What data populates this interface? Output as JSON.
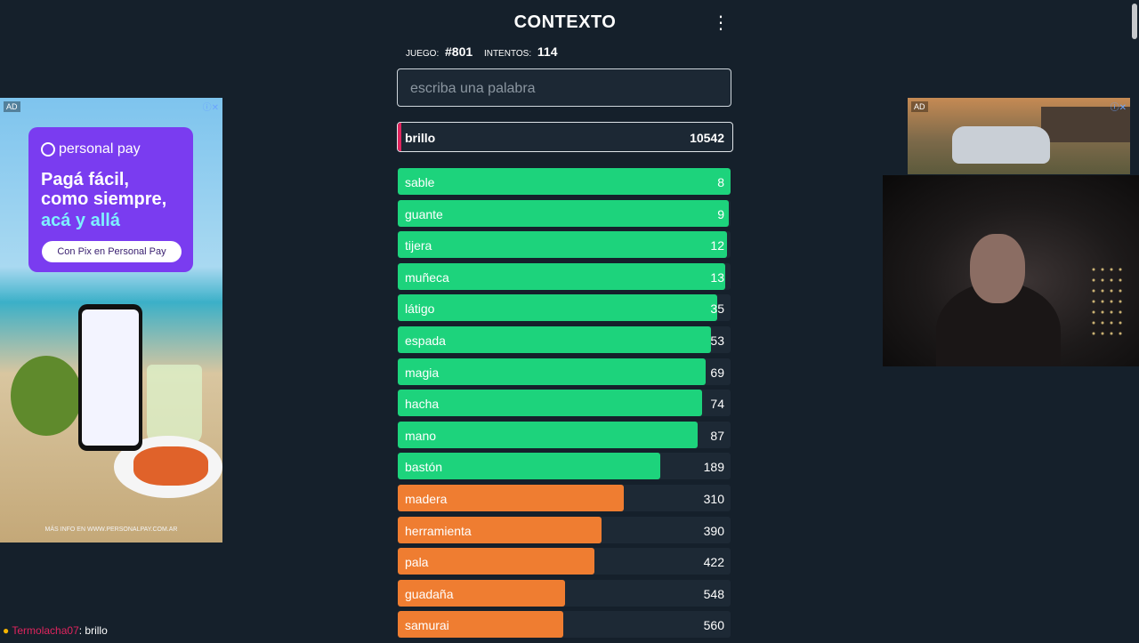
{
  "header": {
    "title": "CONTEXTO",
    "menu_icon": "⋮"
  },
  "stats": {
    "game_label": "JUEGO:",
    "game_value": "#801",
    "attempts_label": "INTENTOS:",
    "attempts_value": "114"
  },
  "search": {
    "placeholder": "escriba una palabra",
    "value": ""
  },
  "current_guess": {
    "word": "brillo",
    "rank": "10542",
    "accent_color": "#e0245e"
  },
  "guesses": [
    {
      "word": "sable",
      "rank": "8",
      "fill": 1.0,
      "color": "#1dd37c"
    },
    {
      "word": "guante",
      "rank": "9",
      "fill": 0.995,
      "color": "#1dd37c"
    },
    {
      "word": "tijera",
      "rank": "12",
      "fill": 0.99,
      "color": "#1dd37c"
    },
    {
      "word": "muñeca",
      "rank": "13",
      "fill": 0.985,
      "color": "#1dd37c"
    },
    {
      "word": "látigo",
      "rank": "35",
      "fill": 0.96,
      "color": "#1dd37c"
    },
    {
      "word": "espada",
      "rank": "53",
      "fill": 0.94,
      "color": "#1dd37c"
    },
    {
      "word": "magia",
      "rank": "69",
      "fill": 0.925,
      "color": "#1dd37c"
    },
    {
      "word": "hacha",
      "rank": "74",
      "fill": 0.915,
      "color": "#1dd37c"
    },
    {
      "word": "mano",
      "rank": "87",
      "fill": 0.9,
      "color": "#1dd37c"
    },
    {
      "word": "bastón",
      "rank": "189",
      "fill": 0.79,
      "color": "#1dd37c"
    },
    {
      "word": "madera",
      "rank": "310",
      "fill": 0.68,
      "color": "#ef7d31"
    },
    {
      "word": "herramienta",
      "rank": "390",
      "fill": 0.613,
      "color": "#ef7d31"
    },
    {
      "word": "pala",
      "rank": "422",
      "fill": 0.592,
      "color": "#ef7d31"
    },
    {
      "word": "guadaña",
      "rank": "548",
      "fill": 0.503,
      "color": "#ef7d31"
    },
    {
      "word": "samurai",
      "rank": "560",
      "fill": 0.498,
      "color": "#ef7d31"
    }
  ],
  "ad_left": {
    "tag": "AD",
    "brand": "personal pay",
    "headline_1": "Pagá fácil,",
    "headline_2": "como siempre,",
    "headline_3": "acá y allá",
    "button": "Con Pix en Personal Pay",
    "footer": "MÁS INFO EN WWW.PERSONALPAY.COM.AR"
  },
  "ad_right": {
    "tag": "AD"
  },
  "chat": {
    "username": "Termolacha07",
    "message": ": brillo"
  }
}
